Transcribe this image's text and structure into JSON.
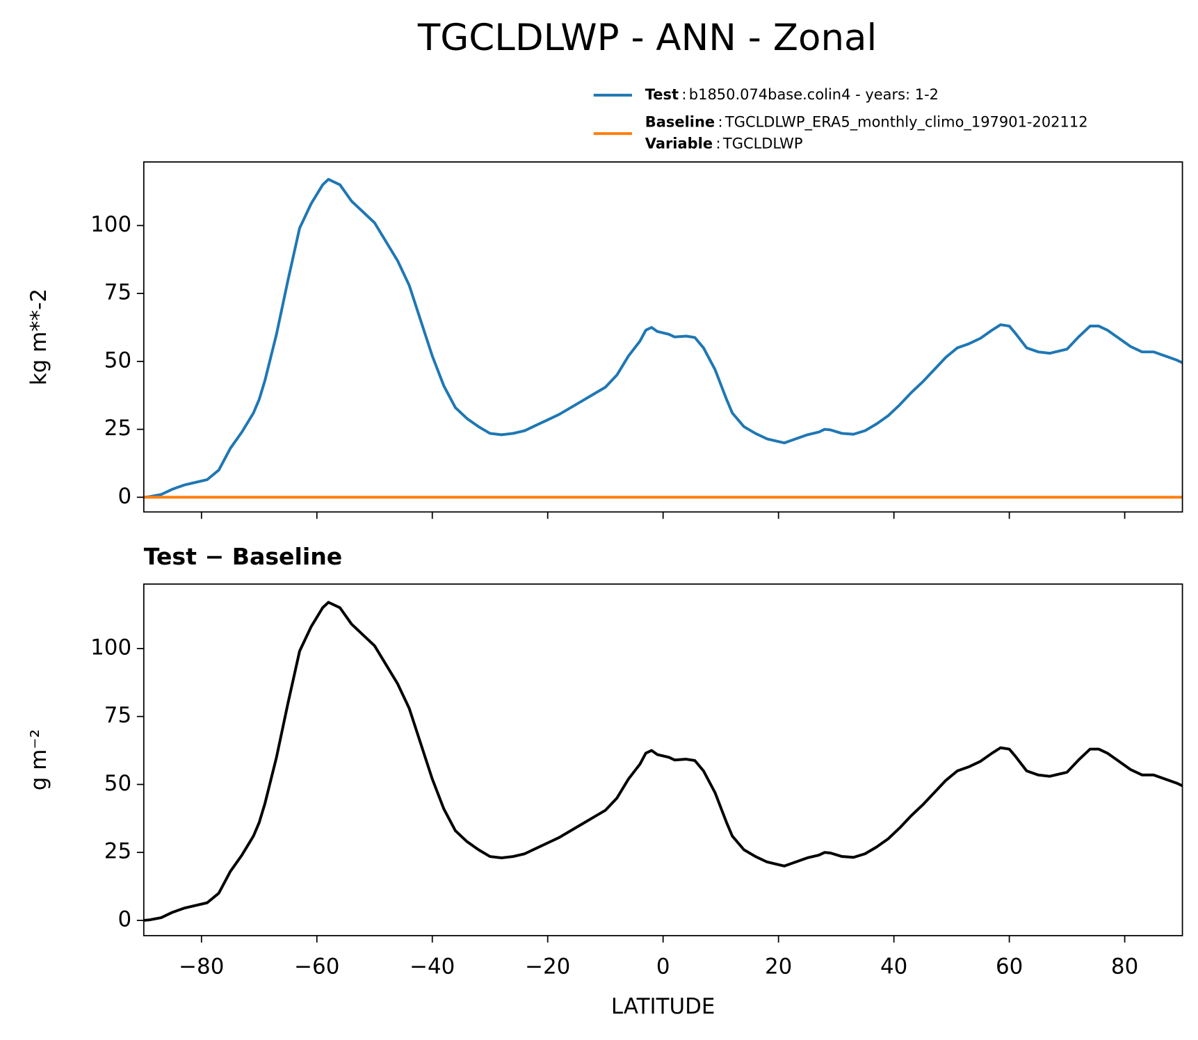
{
  "chart_data": [
    {
      "type": "line",
      "title": "TGCLDLWP - ANN - Zonal",
      "ylabel": "kg m**-2",
      "legend_separator": ":",
      "series": [
        {
          "name": "Test",
          "detail": "b1850.074base.colin4 - years: 1-2",
          "color": "#1f77b4",
          "x": [
            -90,
            -89,
            -87,
            -85,
            -83,
            -81,
            -79,
            -77,
            -75,
            -73,
            -71,
            -70,
            -69,
            -67,
            -65,
            -63,
            -61,
            -59,
            -58,
            -56,
            -54,
            -52,
            -50,
            -48,
            -46,
            -44,
            -42,
            -40,
            -38,
            -36,
            -34,
            -32,
            -30,
            -28,
            -26,
            -24,
            -22,
            -20,
            -18,
            -16,
            -14,
            -12,
            -10,
            -8,
            -6,
            -4,
            -3,
            -2,
            -1,
            1,
            2,
            4,
            5.5,
            7,
            9,
            11,
            12,
            14,
            16,
            18,
            20,
            21,
            23,
            25,
            27,
            28,
            29,
            31,
            33,
            35,
            37,
            39,
            41,
            43,
            45,
            47,
            49,
            51,
            53,
            55,
            57,
            58.5,
            60,
            61,
            63,
            65,
            67,
            69,
            70,
            72,
            74,
            75.5,
            77,
            79,
            81,
            83,
            85,
            87,
            89,
            90
          ],
          "values": [
            0,
            0.2,
            1,
            3,
            4.5,
            5.5,
            6.5,
            10,
            18,
            24,
            31,
            36,
            43,
            60,
            80,
            99,
            108,
            115,
            117,
            115,
            109,
            105,
            101,
            94,
            87,
            78,
            65,
            52,
            41,
            33,
            29,
            26,
            23.5,
            23,
            23.5,
            24.5,
            26.5,
            28.5,
            30.5,
            33,
            35.5,
            38,
            40.5,
            45,
            52,
            57.5,
            61.5,
            62.5,
            61,
            60,
            59,
            59.3,
            58.8,
            55,
            47,
            36,
            31,
            26,
            23.5,
            21.5,
            20.5,
            20,
            21.5,
            23,
            24,
            25,
            24.8,
            23.5,
            23.2,
            24.5,
            27,
            30,
            34,
            38.5,
            42.5,
            47,
            51.5,
            55,
            56.5,
            58.5,
            61.5,
            63.5,
            63,
            60.5,
            55,
            53.5,
            53,
            54,
            54.5,
            59,
            63,
            63,
            61.5,
            58.5,
            55.5,
            53.5,
            53.5,
            52,
            50.5,
            49.5
          ]
        },
        {
          "name": "Baseline",
          "detail": "TGCLDLWP_ERA5_monthly_climo_197901-202112",
          "extra_name": "Variable",
          "extra_detail": "TGCLDLWP",
          "color": "#ff7f0e",
          "x": [
            -90,
            90
          ],
          "values": [
            0,
            0
          ]
        }
      ],
      "xlim": [
        -90,
        90
      ],
      "ylim": [
        -5.4,
        123.4
      ],
      "xticks": [
        -80,
        -60,
        -40,
        -20,
        0,
        20,
        40,
        60,
        80
      ],
      "x_tick_labels": false,
      "yticks": [
        0,
        25,
        50,
        75,
        100
      ]
    },
    {
      "type": "line",
      "subtitle": "Test − Baseline",
      "ylabel": "g m⁻²",
      "xlabel": "LATITUDE",
      "series": [
        {
          "color": "#000000",
          "x": [
            -90,
            -89,
            -87,
            -85,
            -83,
            -81,
            -79,
            -77,
            -75,
            -73,
            -71,
            -70,
            -69,
            -67,
            -65,
            -63,
            -61,
            -59,
            -58,
            -56,
            -54,
            -52,
            -50,
            -48,
            -46,
            -44,
            -42,
            -40,
            -38,
            -36,
            -34,
            -32,
            -30,
            -28,
            -26,
            -24,
            -22,
            -20,
            -18,
            -16,
            -14,
            -12,
            -10,
            -8,
            -6,
            -4,
            -3,
            -2,
            -1,
            1,
            2,
            4,
            5.5,
            7,
            9,
            11,
            12,
            14,
            16,
            18,
            20,
            21,
            23,
            25,
            27,
            28,
            29,
            31,
            33,
            35,
            37,
            39,
            41,
            43,
            45,
            47,
            49,
            51,
            53,
            55,
            57,
            58.5,
            60,
            61,
            63,
            65,
            67,
            69,
            70,
            72,
            74,
            75.5,
            77,
            79,
            81,
            83,
            85,
            87,
            89,
            90
          ],
          "values": [
            0,
            0.2,
            1,
            3,
            4.5,
            5.5,
            6.5,
            10,
            18,
            24,
            31,
            36,
            43,
            60,
            80,
            99,
            108,
            115,
            117,
            115,
            109,
            105,
            101,
            94,
            87,
            78,
            65,
            52,
            41,
            33,
            29,
            26,
            23.5,
            23,
            23.5,
            24.5,
            26.5,
            28.5,
            30.5,
            33,
            35.5,
            38,
            40.5,
            45,
            52,
            57.5,
            61.5,
            62.5,
            61,
            60,
            59,
            59.3,
            58.8,
            55,
            47,
            36,
            31,
            26,
            23.5,
            21.5,
            20.5,
            20,
            21.5,
            23,
            24,
            25,
            24.8,
            23.5,
            23.2,
            24.5,
            27,
            30,
            34,
            38.5,
            42.5,
            47,
            51.5,
            55,
            56.5,
            58.5,
            61.5,
            63.5,
            63,
            60.5,
            55,
            53.5,
            53,
            54,
            54.5,
            59,
            63,
            63,
            61.5,
            58.5,
            55.5,
            53.5,
            53.5,
            52,
            50.5,
            49.5
          ]
        }
      ],
      "xlim": [
        -90,
        90
      ],
      "ylim": [
        -5.6,
        123.7
      ],
      "xticks": [
        {
          "value": -80,
          "label": "−80"
        },
        {
          "value": -60,
          "label": "−60"
        },
        {
          "value": -40,
          "label": "−40"
        },
        {
          "value": -20,
          "label": "−20"
        },
        0,
        20,
        40,
        60,
        80
      ],
      "yticks": [
        0,
        25,
        50,
        75,
        100
      ]
    }
  ]
}
